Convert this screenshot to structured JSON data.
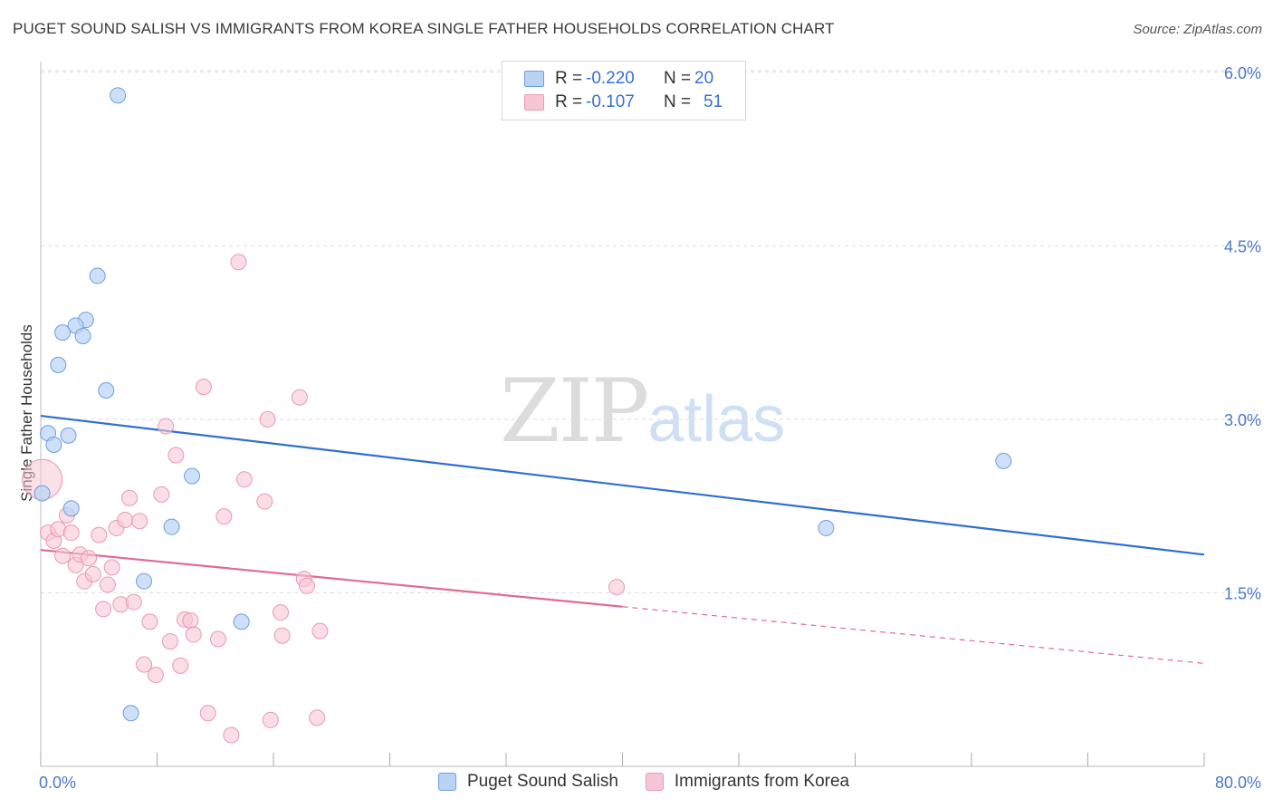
{
  "title": "PUGET SOUND SALISH VS IMMIGRANTS FROM KOREA SINGLE FATHER HOUSEHOLDS CORRELATION CHART",
  "source": "Source: ZipAtlas.com",
  "watermark": {
    "zip": "ZIP",
    "atlas": "atlas"
  },
  "legend": {
    "rows": [
      {
        "r_label": "R =",
        "r_value": "-0.220",
        "n_label": "N =",
        "n_value": "20"
      },
      {
        "r_label": "R =",
        "r_value": "-0.107",
        "n_label": "N =",
        "n_value": "51"
      }
    ]
  },
  "bottom_legend": [
    "Puget Sound Salish",
    "Immigrants from Korea"
  ],
  "colors": {
    "blue_fill": "#b8d3f3",
    "blue_stroke": "#6d9ee0",
    "blue_line": "#2f6fd0",
    "pink_fill": "#f6c6d4",
    "pink_stroke": "#e89ab2",
    "pink_line": "#e06a95",
    "grid": "#dddddd",
    "axis_label": "#4a78c8"
  },
  "chart_data": {
    "type": "scatter",
    "title": "PUGET SOUND SALISH VS IMMIGRANTS FROM KOREA SINGLE FATHER HOUSEHOLDS CORRELATION CHART",
    "xlabel": "",
    "ylabel": "Single Father Households",
    "xlim": [
      0,
      80
    ],
    "ylim": [
      0,
      6.2
    ],
    "x_tick_labels": [
      "0.0%",
      "80.0%"
    ],
    "y_ticks": [
      1.5,
      3.0,
      4.5,
      6.0
    ],
    "y_tick_labels": [
      "1.5%",
      "3.0%",
      "4.5%",
      "6.0%"
    ],
    "series": [
      {
        "name": "Puget Sound Salish",
        "r": -0.22,
        "n": 20,
        "points": [
          [
            5.3,
            5.8
          ],
          [
            3.9,
            4.24
          ],
          [
            3.1,
            3.86
          ],
          [
            2.4,
            3.81
          ],
          [
            1.5,
            3.75
          ],
          [
            2.9,
            3.72
          ],
          [
            1.2,
            3.47
          ],
          [
            4.5,
            3.25
          ],
          [
            0.5,
            2.88
          ],
          [
            1.9,
            2.86
          ],
          [
            0.9,
            2.78
          ],
          [
            10.4,
            2.51
          ],
          [
            0.1,
            2.36
          ],
          [
            2.1,
            2.23
          ],
          [
            9.0,
            2.07
          ],
          [
            7.1,
            1.6
          ],
          [
            13.8,
            1.25
          ],
          [
            6.2,
            0.46
          ],
          [
            54.0,
            2.06
          ],
          [
            66.2,
            2.64
          ]
        ],
        "trend": {
          "x0": 0,
          "y0": 3.03,
          "x1": 80,
          "y1": 1.83
        }
      },
      {
        "name": "Immigrants from Korea",
        "r": -0.107,
        "n": 51,
        "points": [
          [
            0.1,
            2.48
          ],
          [
            0.5,
            2.02
          ],
          [
            0.9,
            1.95
          ],
          [
            1.2,
            2.05
          ],
          [
            1.5,
            1.82
          ],
          [
            1.8,
            2.17
          ],
          [
            2.1,
            2.02
          ],
          [
            2.4,
            1.74
          ],
          [
            2.7,
            1.83
          ],
          [
            3.0,
            1.6
          ],
          [
            3.3,
            1.8
          ],
          [
            3.6,
            1.66
          ],
          [
            4.0,
            2.0
          ],
          [
            4.3,
            1.36
          ],
          [
            4.6,
            1.57
          ],
          [
            4.9,
            1.72
          ],
          [
            5.2,
            2.06
          ],
          [
            5.5,
            1.4
          ],
          [
            5.8,
            2.13
          ],
          [
            6.1,
            2.32
          ],
          [
            6.4,
            1.42
          ],
          [
            6.8,
            2.12
          ],
          [
            7.1,
            0.88
          ],
          [
            7.5,
            1.25
          ],
          [
            7.9,
            0.79
          ],
          [
            8.3,
            2.35
          ],
          [
            8.6,
            2.94
          ],
          [
            8.9,
            1.08
          ],
          [
            9.3,
            2.69
          ],
          [
            9.6,
            0.87
          ],
          [
            9.9,
            1.27
          ],
          [
            10.3,
            1.26
          ],
          [
            10.5,
            1.14
          ],
          [
            11.2,
            3.28
          ],
          [
            11.5,
            0.46
          ],
          [
            12.2,
            1.1
          ],
          [
            12.6,
            2.16
          ],
          [
            13.1,
            0.27
          ],
          [
            13.6,
            4.36
          ],
          [
            14.0,
            2.48
          ],
          [
            15.4,
            2.29
          ],
          [
            15.6,
            3.0
          ],
          [
            15.8,
            0.4
          ],
          [
            16.5,
            1.33
          ],
          [
            16.6,
            1.13
          ],
          [
            17.8,
            3.19
          ],
          [
            18.1,
            1.62
          ],
          [
            18.3,
            1.56
          ],
          [
            19.0,
            0.42
          ],
          [
            19.2,
            1.17
          ],
          [
            39.6,
            1.55
          ]
        ],
        "trend": {
          "x0": 0,
          "y0": 1.87,
          "x1": 40,
          "y1": 1.38
        },
        "trend_dashed": {
          "x0": 40,
          "y0": 1.38,
          "x1": 80,
          "y1": 0.89
        }
      }
    ],
    "legend_position": "top-center",
    "grid": true
  }
}
